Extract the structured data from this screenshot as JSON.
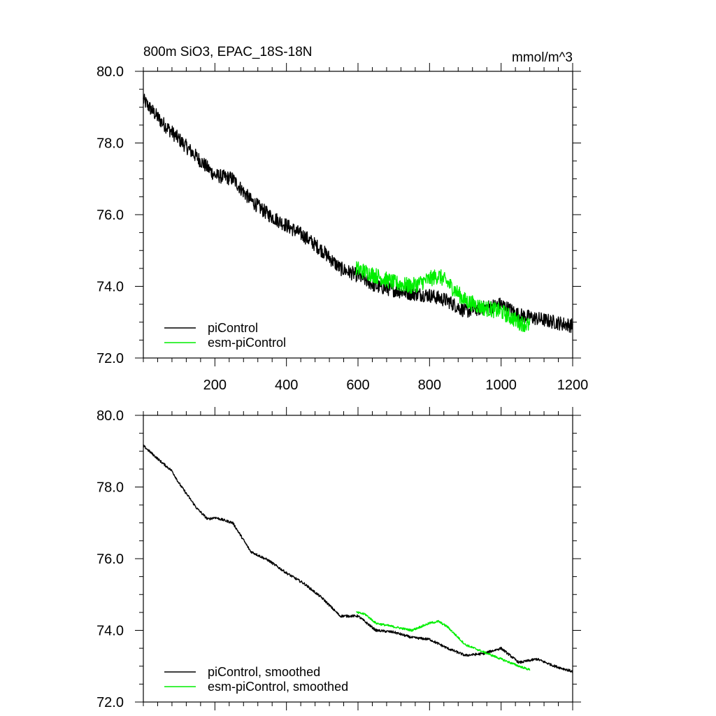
{
  "chart_data": [
    {
      "type": "line",
      "title_left": "800m SiO3, EPAC_18S-18N",
      "title_right": "mmol/m^3",
      "xlabel": "",
      "ylabel": "",
      "xlim": [
        0,
        1200
      ],
      "ylim": [
        72.0,
        80.0
      ],
      "x_ticks": [
        "200",
        "400",
        "600",
        "800",
        "1000",
        "1200"
      ],
      "y_ticks": [
        "72.0",
        "74.0",
        "76.0",
        "78.0",
        "80.0"
      ],
      "legend_position": "bottom-left",
      "series": [
        {
          "name": "piControl",
          "color": "#000000",
          "noise": 0.4,
          "x": [
            0,
            50,
            100,
            150,
            200,
            250,
            300,
            350,
            400,
            450,
            500,
            550,
            600,
            650,
            700,
            750,
            800,
            850,
            900,
            950,
            1000,
            1050,
            1100,
            1150,
            1200
          ],
          "y": [
            79.2,
            78.6,
            78.1,
            77.6,
            77.1,
            77.0,
            76.4,
            76.0,
            75.7,
            75.4,
            75.0,
            74.5,
            74.3,
            74.0,
            73.9,
            73.8,
            73.75,
            73.6,
            73.3,
            73.4,
            73.5,
            73.2,
            73.1,
            73.0,
            72.9
          ]
        },
        {
          "name": "esm-piControl",
          "color": "#00ee00",
          "noise": 0.45,
          "x": [
            595,
            650,
            700,
            750,
            800,
            825,
            850,
            900,
            950,
            1000,
            1050,
            1080
          ],
          "y": [
            74.5,
            74.3,
            74.1,
            74.0,
            74.2,
            74.3,
            74.1,
            73.6,
            73.4,
            73.3,
            73.0,
            72.9
          ]
        }
      ]
    },
    {
      "type": "line",
      "xlabel": "",
      "ylabel": "",
      "xlim": [
        0,
        1200
      ],
      "ylim": [
        72.0,
        80.0
      ],
      "y_ticks": [
        "72.0",
        "74.0",
        "76.0",
        "78.0",
        "80.0"
      ],
      "legend_position": "bottom-left",
      "series": [
        {
          "name": "piControl, smoothed",
          "color": "#000000",
          "noise": 0.07,
          "x": [
            0,
            50,
            80,
            100,
            150,
            180,
            200,
            250,
            300,
            350,
            400,
            450,
            500,
            550,
            600,
            650,
            700,
            750,
            800,
            850,
            900,
            950,
            1000,
            1050,
            1100,
            1150,
            1200
          ],
          "y": [
            79.15,
            78.7,
            78.45,
            78.1,
            77.4,
            77.1,
            77.15,
            77.0,
            76.2,
            75.95,
            75.6,
            75.3,
            74.9,
            74.4,
            74.4,
            74.0,
            73.95,
            73.8,
            73.75,
            73.5,
            73.3,
            73.35,
            73.5,
            73.1,
            73.2,
            73.0,
            72.85
          ]
        },
        {
          "name": "esm-piControl, smoothed",
          "color": "#00ee00",
          "noise": 0.06,
          "x": [
            595,
            620,
            650,
            700,
            750,
            800,
            825,
            850,
            900,
            950,
            1000,
            1050,
            1080
          ],
          "y": [
            74.5,
            74.45,
            74.2,
            74.1,
            74.0,
            74.2,
            74.25,
            74.1,
            73.6,
            73.4,
            73.2,
            73.0,
            72.9
          ]
        }
      ]
    }
  ]
}
